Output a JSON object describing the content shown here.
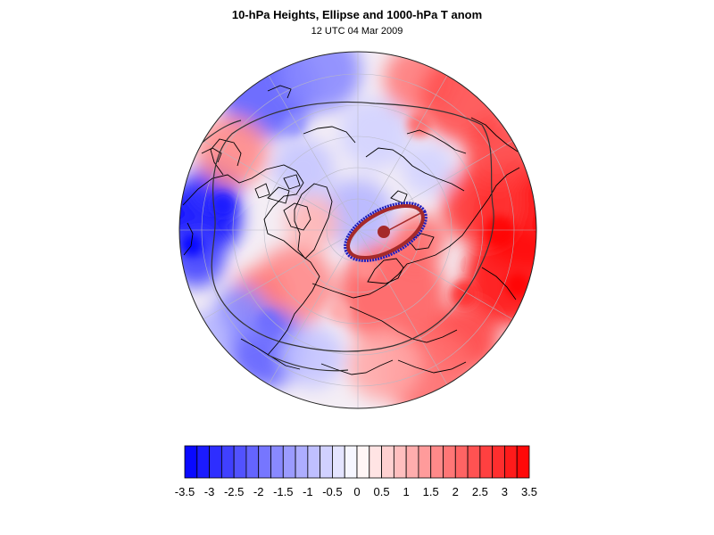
{
  "title": "10-hPa Heights, Ellipse and 1000-hPa T anom",
  "subtitle": "12 UTC 04 Mar 2009",
  "projection": "polar-stereographic-north",
  "colors": {
    "negative_max": "#0000ff",
    "neutral": "#ffffff",
    "positive_max": "#ff0000",
    "ellipse_fill": "#1f1fbf",
    "ellipse_outline": "#a52a2a",
    "center_marker": "#a52a2a",
    "contour": "#333333",
    "coastline": "#000000"
  },
  "colorbar": {
    "levels": [
      -3.5,
      -3.25,
      -3,
      -2.75,
      -2.5,
      -2.25,
      -2,
      -1.75,
      -1.5,
      -1.25,
      -1,
      -0.75,
      -0.5,
      -0.25,
      0,
      0.25,
      0.5,
      0.75,
      1,
      1.25,
      1.5,
      1.75,
      2,
      2.25,
      2.5,
      2.75,
      3,
      3.25,
      3.5
    ],
    "tick_labels": [
      "-3.5",
      "-3",
      "-2.5",
      "-2",
      "-1.5",
      "-1",
      "-0.5",
      "0",
      "0.5",
      "1",
      "1.5",
      "2",
      "2.5",
      "3",
      "3.5"
    ]
  }
}
